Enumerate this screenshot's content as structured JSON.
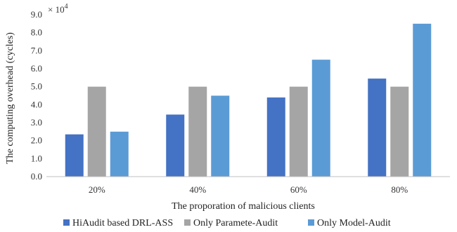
{
  "chart_data": {
    "type": "bar",
    "categories": [
      "20%",
      "40%",
      "60%",
      "80%"
    ],
    "series": [
      {
        "name": "HiAudit based DRL-ASS",
        "color": "#4472C4",
        "values": [
          2.35,
          3.45,
          4.4,
          5.45
        ]
      },
      {
        "name": "Only Paramete-Audit",
        "color": "#A5A5A5",
        "values": [
          5.0,
          5.0,
          5.0,
          5.0
        ]
      },
      {
        "name": "Only Model-Audit",
        "color": "#5B9BD5",
        "values": [
          2.5,
          4.5,
          6.5,
          8.5
        ]
      }
    ],
    "yticks": [
      "0.0",
      "1.0",
      "2.0",
      "3.0",
      "4.0",
      "5.0",
      "6.0",
      "7.0",
      "8.0",
      "9.0"
    ],
    "ylim": [
      0,
      9
    ],
    "scale_label": "× 10",
    "scale_exponent": "4",
    "xlabel": "The proporation of malicious clients",
    "ylabel": "The computing overhead (cycles)",
    "grid": false,
    "legend_position": "bottom"
  }
}
